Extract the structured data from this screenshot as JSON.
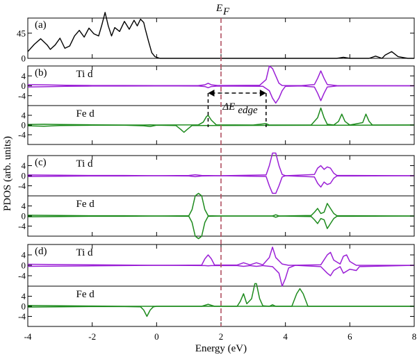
{
  "chart_data": {
    "type": "line",
    "xlabel": "Energy (eV)",
    "ylabel": "PDOS (arb. units)",
    "xlim": [
      -4,
      8
    ],
    "x_ticks": [
      "-4",
      "-2",
      "0",
      "2",
      "4",
      "6",
      "8"
    ],
    "fermi_level": {
      "label": "E_F",
      "label_main": "E",
      "label_sub": "F",
      "x": 2.0,
      "color": "#b05060"
    },
    "colors": {
      "Ti d": "#9a1fd6",
      "Fe d": "#1c8a1c",
      "total": "#000000"
    },
    "panels": [
      {
        "label": "(a)",
        "ylim": [
          0,
          72
        ],
        "y_ticks": [
          "45",
          "0"
        ],
        "y_tick_values": [
          45,
          0
        ],
        "series": [
          {
            "kind": "total",
            "x": [
              -4.0,
              -3.8,
              -3.6,
              -3.4,
              -3.3,
              -3.15,
              -3.0,
              -2.85,
              -2.7,
              -2.55,
              -2.4,
              -2.25,
              -2.1,
              -1.95,
              -1.8,
              -1.7,
              -1.6,
              -1.5,
              -1.4,
              -1.3,
              -1.15,
              -1.0,
              -0.85,
              -0.7,
              -0.6,
              -0.5,
              -0.4,
              -0.35,
              -0.25,
              -0.15,
              -0.05,
              0.1,
              2.0,
              5.6,
              5.8,
              6.0,
              6.2,
              6.6,
              6.8,
              7.0,
              7.1,
              7.3,
              7.5,
              7.8,
              8.0
            ],
            "y": [
              12,
              25,
              35,
              24,
              16,
              24,
              36,
              18,
              22,
              40,
              50,
              38,
              54,
              44,
              40,
              60,
              82,
              58,
              40,
              55,
              48,
              66,
              52,
              68,
              58,
              70,
              64,
              52,
              30,
              10,
              3,
              0,
              0,
              0,
              2,
              0,
              0,
              0,
              4,
              0,
              6,
              12,
              3,
              0,
              0
            ]
          }
        ]
      },
      {
        "label": "(b)",
        "subplots": [
          {
            "species": "Ti d",
            "ylim": [
              -8,
              8
            ],
            "y_ticks": [
              "4",
              "0",
              "-4"
            ],
            "y_tick_values": [
              4,
              0,
              -4
            ],
            "up": {
              "x": [
                -4.0,
                -3.5,
                -2.8,
                -2.0,
                -1.0,
                0.0,
                1.3,
                1.5,
                1.6,
                1.7,
                1.9,
                3.2,
                3.4,
                3.5,
                3.6,
                3.7,
                3.8,
                3.9,
                4.5,
                4.9,
                5.0,
                5.1,
                5.2,
                5.3,
                5.6,
                8.0
              ],
              "y": [
                0.5,
                0.4,
                0.2,
                0.1,
                0.1,
                0.05,
                0.1,
                0.4,
                1.0,
                0.4,
                0.1,
                0.2,
                2.5,
                8.0,
                7.0,
                4.0,
                1.0,
                0.1,
                0.05,
                0.5,
                3.0,
                6.0,
                3.0,
                0.5,
                0.05,
                0.0
              ]
            },
            "down": {
              "x": [
                -4.0,
                -3.5,
                -2.8,
                -2.0,
                -1.0,
                0.0,
                1.3,
                1.5,
                1.6,
                1.7,
                1.9,
                3.3,
                3.5,
                3.6,
                3.7,
                3.8,
                3.9,
                4.0,
                4.5,
                4.9,
                5.0,
                5.1,
                5.2,
                5.3,
                5.6,
                8.0
              ],
              "y": [
                -0.5,
                -0.4,
                -0.2,
                -0.1,
                -0.1,
                -0.05,
                -0.1,
                -0.3,
                -0.8,
                -0.3,
                -0.1,
                -0.2,
                -2.0,
                -5.0,
                -7.0,
                -5.0,
                -2.0,
                -0.2,
                -0.05,
                -0.5,
                -3.0,
                -6.0,
                -3.0,
                -0.5,
                -0.05,
                0.0
              ]
            }
          },
          {
            "species": "Fe d",
            "ylim": [
              -8,
              8
            ],
            "y_ticks": [
              "4",
              "0",
              "-4"
            ],
            "y_tick_values": [
              4,
              0,
              -4
            ],
            "up": {
              "x": [
                -4.0,
                -3.5,
                -3.0,
                -2.0,
                -1.0,
                -0.4,
                -0.2,
                0.0,
                1.3,
                1.45,
                1.55,
                1.6,
                1.7,
                1.85,
                3.0,
                3.4,
                3.5,
                4.8,
                5.0,
                5.1,
                5.2,
                5.3,
                5.5,
                5.65,
                5.75,
                5.85,
                6.0,
                6.4,
                6.5,
                6.6,
                6.7,
                6.9,
                8.0
              ],
              "y": [
                0.2,
                0.3,
                0.2,
                0.1,
                0.0,
                0.0,
                0.1,
                0.0,
                0.1,
                1.2,
                3.5,
                4.0,
                2.0,
                0.1,
                0.0,
                0.6,
                0.0,
                0.0,
                3.0,
                7.0,
                3.0,
                0.3,
                0.0,
                1.5,
                4.5,
                1.5,
                0.0,
                1.0,
                4.5,
                1.5,
                0.0,
                0.0,
                0.0
              ]
            },
            "down": {
              "x": [
                -4.0,
                -3.5,
                -3.0,
                -2.0,
                -1.0,
                -0.4,
                -0.2,
                0.0,
                0.6,
                0.75,
                0.85,
                0.95,
                1.1,
                8.0
              ],
              "y": [
                -0.3,
                -0.5,
                -0.2,
                -0.1,
                -0.1,
                -0.3,
                -0.6,
                -0.1,
                -0.2,
                -1.8,
                -3.0,
                -1.8,
                -0.2,
                0.0
              ]
            }
          }
        ],
        "annotation": {
          "label_main": "ΔE",
          "label_sub": "edge",
          "x_start": 1.6,
          "x_end": 3.4,
          "y": 4.0
        }
      },
      {
        "label": "(c)",
        "subplots": [
          {
            "species": "Ti d",
            "ylim": [
              -8,
              8
            ],
            "y_ticks": [
              "4",
              "0",
              "-4"
            ],
            "y_tick_values": [
              4,
              0,
              -4
            ],
            "up": {
              "x": [
                -4.0,
                -3.0,
                -2.0,
                -1.0,
                0.0,
                1.0,
                1.2,
                1.4,
                2.0,
                3.4,
                3.5,
                3.6,
                3.7,
                3.8,
                3.9,
                4.0,
                4.9,
                5.0,
                5.1,
                5.2,
                5.3,
                5.4,
                5.5,
                5.6,
                8.0
              ],
              "y": [
                0.3,
                0.2,
                0.1,
                0.1,
                0.0,
                0.1,
                0.4,
                0.1,
                0.0,
                0.3,
                4.0,
                9.0,
                9.0,
                4.0,
                0.5,
                0.0,
                0.5,
                3.0,
                4.0,
                2.5,
                3.5,
                3.0,
                1.0,
                0.1,
                0.0
              ]
            },
            "down": {
              "x": [
                -4.0,
                -3.0,
                -2.0,
                -1.0,
                0.0,
                1.0,
                1.2,
                1.4,
                2.0,
                3.4,
                3.5,
                3.6,
                3.7,
                3.8,
                3.9,
                4.0,
                4.9,
                5.0,
                5.1,
                5.2,
                5.3,
                5.4,
                5.5,
                5.6,
                8.0
              ],
              "y": [
                -0.3,
                -0.2,
                -0.1,
                -0.1,
                0.0,
                -0.1,
                -0.4,
                -0.1,
                0.0,
                -0.3,
                -4.0,
                -7.0,
                -7.0,
                -4.0,
                -0.5,
                0.0,
                -0.5,
                -3.0,
                -4.5,
                -2.5,
                -3.5,
                -3.0,
                -1.0,
                -0.1,
                0.0
              ]
            }
          },
          {
            "species": "Fe d",
            "ylim": [
              -8,
              8
            ],
            "y_ticks": [
              "4",
              "0",
              "-4"
            ],
            "y_tick_values": [
              4,
              0,
              -4
            ],
            "up": {
              "x": [
                -4.0,
                -3.0,
                -2.0,
                -1.0,
                0.0,
                1.0,
                1.1,
                1.2,
                1.3,
                1.4,
                1.5,
                1.6,
                2.0,
                3.6,
                3.7,
                3.8,
                4.8,
                4.9,
                5.0,
                5.1,
                5.2,
                5.3,
                5.4,
                5.5,
                5.6,
                8.0
              ],
              "y": [
                0.3,
                0.2,
                0.1,
                0.1,
                0.0,
                0.1,
                2.5,
                8.0,
                9.0,
                8.0,
                2.5,
                0.1,
                0.0,
                0.0,
                0.5,
                0.0,
                0.2,
                1.5,
                3.0,
                1.0,
                1.5,
                5.0,
                3.0,
                1.0,
                0.1,
                0.0
              ]
            },
            "down": {
              "x": [
                -4.0,
                -3.0,
                -2.0,
                -1.0,
                0.0,
                1.0,
                1.1,
                1.2,
                1.3,
                1.4,
                1.5,
                1.6,
                2.0,
                3.6,
                3.7,
                3.8,
                4.8,
                4.9,
                5.0,
                5.1,
                5.2,
                5.3,
                5.4,
                5.5,
                5.6,
                8.0
              ],
              "y": [
                -0.3,
                -0.2,
                -0.1,
                -0.1,
                0.0,
                -0.1,
                -2.5,
                -8.0,
                -9.0,
                -8.0,
                -2.5,
                -0.1,
                0.0,
                0.0,
                -0.5,
                0.0,
                -0.2,
                -1.5,
                -3.0,
                -1.0,
                -1.5,
                -5.0,
                -3.0,
                -1.0,
                -0.1,
                0.0
              ]
            }
          }
        ]
      },
      {
        "label": "(d)",
        "subplots": [
          {
            "species": "Ti d",
            "ylim": [
              -8,
              8
            ],
            "y_ticks": [
              "4",
              "0",
              "-4"
            ],
            "y_tick_values": [
              4,
              0,
              -4
            ],
            "up": {
              "x": [
                -4.0,
                -3.0,
                -2.0,
                -1.0,
                0.0,
                1.4,
                1.5,
                1.6,
                1.7,
                1.8,
                2.5,
                2.7,
                2.9,
                3.1,
                3.3,
                3.5,
                3.6,
                3.7,
                3.9,
                4.1,
                5.1,
                5.3,
                5.4,
                5.5,
                5.7,
                5.8,
                5.9,
                6.0,
                6.2,
                8.0
              ],
              "y": [
                0.4,
                0.3,
                0.2,
                0.1,
                0.0,
                0.1,
                2.5,
                4.0,
                2.5,
                0.1,
                0.1,
                1.0,
                0.2,
                1.0,
                0.2,
                3.0,
                7.0,
                3.0,
                0.5,
                0.0,
                0.2,
                4.0,
                5.0,
                2.0,
                0.5,
                3.5,
                4.0,
                1.5,
                0.0,
                0.0
              ]
            },
            "down": {
              "x": [
                -4.0,
                -3.0,
                -2.0,
                -1.0,
                0.0,
                1.5,
                1.6,
                1.7,
                2.5,
                2.7,
                2.9,
                3.1,
                3.3,
                3.6,
                3.8,
                3.9,
                4.0,
                4.1,
                4.3,
                5.1,
                5.3,
                5.4,
                5.5,
                5.7,
                5.8,
                6.0,
                6.2,
                6.3,
                8.0
              ],
              "y": [
                -0.4,
                -0.3,
                -0.2,
                -0.1,
                0.0,
                -0.1,
                -0.2,
                -0.1,
                -0.1,
                -0.4,
                -0.1,
                -0.4,
                -0.1,
                -0.5,
                -3.0,
                -8.0,
                -5.0,
                -1.0,
                0.0,
                -0.5,
                -3.0,
                -4.0,
                -2.0,
                -0.5,
                -3.0,
                -1.5,
                -2.0,
                -0.5,
                0.0
              ]
            }
          },
          {
            "species": "Fe d",
            "ylim": [
              -8,
              8
            ],
            "y_ticks": [
              "4",
              "0",
              "-4"
            ],
            "y_tick_values": [
              4,
              0,
              -4
            ],
            "up": {
              "x": [
                -4.0,
                -3.0,
                -2.0,
                -1.0,
                0.0,
                1.4,
                1.6,
                1.8,
                2.5,
                2.6,
                2.7,
                2.8,
                2.95,
                3.05,
                3.1,
                3.2,
                3.3,
                3.5,
                3.6,
                3.7,
                4.2,
                4.35,
                4.45,
                4.55,
                4.7,
                8.0
              ],
              "y": [
                0.3,
                0.2,
                0.1,
                0.0,
                0.0,
                0.0,
                0.8,
                0.0,
                0.0,
                2.0,
                5.0,
                1.0,
                3.0,
                9.0,
                9.0,
                3.0,
                0.2,
                0.0,
                0.6,
                0.0,
                0.0,
                5.0,
                7.0,
                5.0,
                0.0,
                0.0
              ]
            },
            "down": {
              "x": [
                -4.0,
                -3.0,
                -2.0,
                -1.0,
                -0.5,
                -0.4,
                -0.3,
                -0.2,
                -0.1,
                0.0,
                8.0
              ],
              "y": [
                -0.3,
                -0.2,
                -0.1,
                -0.1,
                -0.2,
                -1.5,
                -4.0,
                -1.5,
                -0.2,
                0.0,
                0.0
              ]
            }
          }
        ]
      }
    ]
  }
}
